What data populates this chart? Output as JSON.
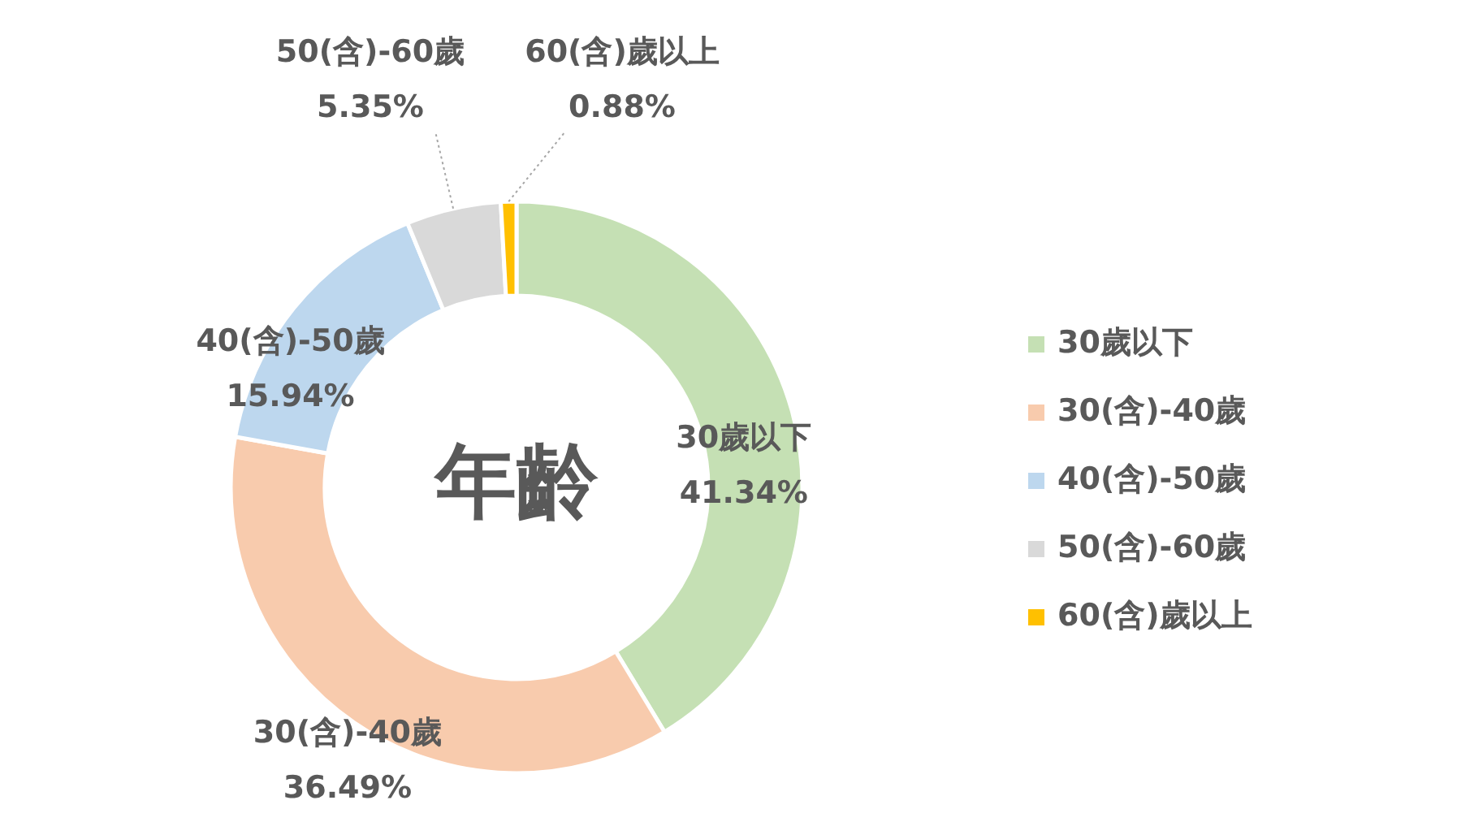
{
  "chart_data": {
    "type": "donut",
    "title": "年齡",
    "categories": [
      "30歲以下",
      "30(含)-40歲",
      "40(含)-50歲",
      "50(含)-60歲",
      "60(含)歲以上"
    ],
    "values": [
      41.34,
      36.49,
      15.94,
      5.35,
      0.88
    ],
    "colors": [
      "#c5e0b4",
      "#f8cbad",
      "#bdd7ee",
      "#d9d9d9",
      "#ffc000"
    ],
    "value_labels": [
      "41.34%",
      "36.49%",
      "15.94%",
      "5.35%",
      "0.88%"
    ],
    "legend": "right"
  }
}
